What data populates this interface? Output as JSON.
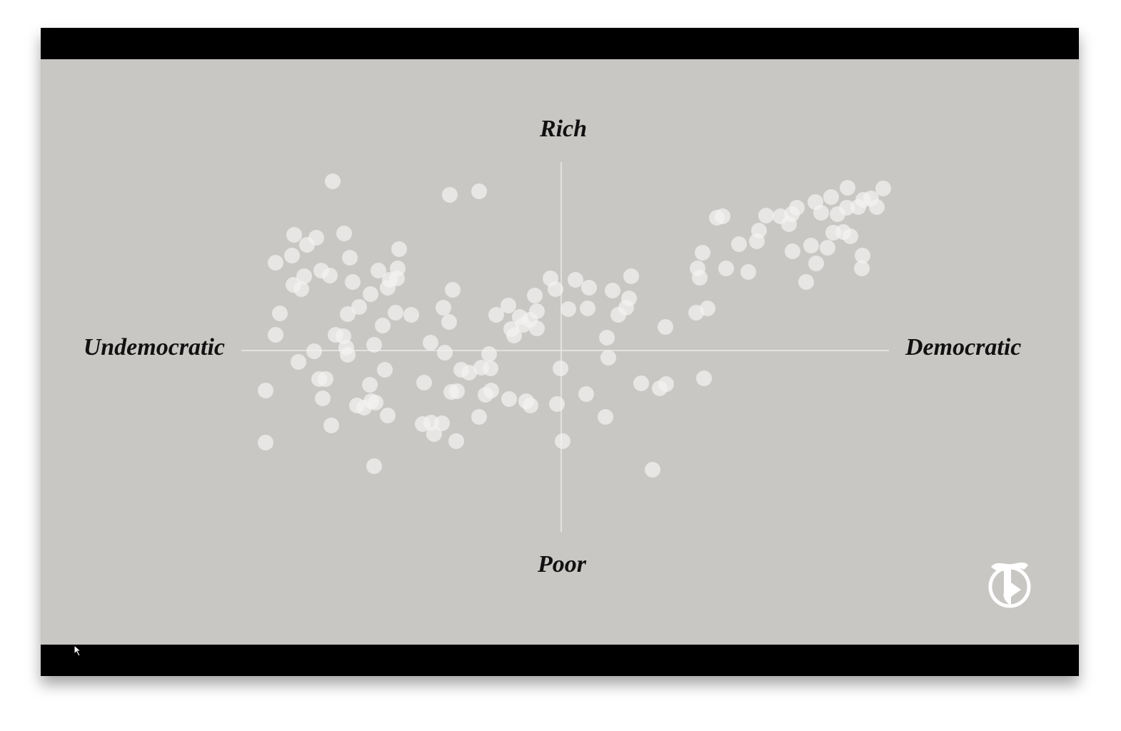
{
  "chart_data": {
    "type": "scatter",
    "y_label_top": "Rich",
    "y_label_bottom": "Poor",
    "x_label_left": "Undemocratic",
    "x_label_right": "Democratic",
    "color": "#f4f3f1",
    "xlim": [
      -448,
      459
    ],
    "ylim": [
      -254,
      264
    ],
    "x": [
      -320,
      -156,
      -115,
      -374,
      -343,
      -356,
      -304,
      -400,
      -377,
      -296,
      -227,
      -336,
      -324,
      -360,
      -375,
      -364,
      -292,
      -256,
      -229,
      -240,
      -230,
      -243,
      -267,
      -394,
      -299,
      -283,
      -232,
      -210,
      -250,
      -165,
      -157,
      -152,
      -400,
      -316,
      -305,
      -301,
      -299,
      -262,
      -346,
      -368,
      -339,
      -330,
      -334,
      -247,
      -268,
      -266,
      -286,
      -276,
      -260,
      -243,
      -322,
      -414,
      -414,
      -262,
      -183,
      -163,
      -192,
      -140,
      -129,
      -112,
      -99,
      -101,
      -154,
      -146,
      -98,
      -106,
      -115,
      -194,
      -182,
      -167,
      -178,
      -147,
      -73,
      -49,
      -43,
      -6,
      2,
      -1,
      35,
      62,
      66,
      64,
      128,
      112,
      138,
      147,
      200,
      146,
      -91,
      -74,
      -58,
      -70,
      -66,
      -53,
      -44,
      -34,
      -34,
      -37,
      -15,
      -8,
      20,
      39,
      10,
      37,
      72,
      98,
      95,
      91,
      80,
      189,
      205,
      194,
      191,
      198,
      231,
      262,
      249,
      218,
      226,
      274,
      277,
      287,
      307,
      319,
      323,
      330,
      324,
      350,
      357,
      343,
      373,
      381,
      356,
      378,
      401,
      400,
      416,
      423,
      434,
      451,
      442,
      387,
      405,
      422,
      421,
      395,
      364
    ],
    "y": [
      237,
      218,
      223,
      162,
      158,
      148,
      164,
      123,
      133,
      130,
      142,
      112,
      105,
      104,
      92,
      86,
      96,
      112,
      115,
      99,
      101,
      88,
      79,
      52,
      51,
      61,
      53,
      50,
      35,
      60,
      40,
      85,
      22,
      22,
      20,
      4,
      -6,
      8,
      -1,
      -16,
      -40,
      -40,
      -67,
      -27,
      -48,
      -71,
      -77,
      -80,
      -73,
      -91,
      -105,
      -56,
      -129,
      -162,
      11,
      -3,
      -45,
      -27,
      -31,
      -24,
      -25,
      -5,
      -58,
      -57,
      -56,
      -62,
      -93,
      -103,
      -101,
      -102,
      -117,
      -127,
      -68,
      -71,
      -77,
      -75,
      -127,
      -25,
      -61,
      -93,
      -10,
      18,
      -167,
      -46,
      -53,
      -47,
      -39,
      33,
      50,
      63,
      47,
      30,
      21,
      36,
      43,
      31,
      55,
      77,
      101,
      86,
      99,
      88,
      58,
      59,
      84,
      104,
      73,
      60,
      50,
      53,
      59,
      102,
      115,
      137,
      115,
      110,
      149,
      186,
      188,
      153,
      168,
      189,
      188,
      177,
      191,
      200,
      139,
      147,
      122,
      96,
      144,
      165,
      208,
      215,
      228,
      200,
      201,
      211,
      213,
      227,
      201,
      191,
      160,
      133,
      115,
      166,
      193
    ]
  }
}
